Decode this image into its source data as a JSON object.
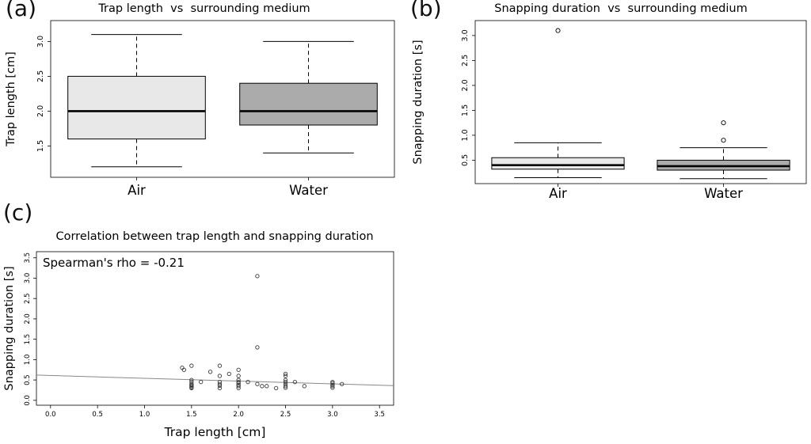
{
  "figure": {
    "panels": {
      "a": {
        "label": "(a)"
      },
      "b": {
        "label": "(b)"
      },
      "c": {
        "label": "(c)"
      }
    },
    "colors": {
      "air_box": "#e8e8e8",
      "water_box": "#ababab",
      "regression_line": "#888888"
    }
  },
  "chart_data": [
    {
      "panel": "a",
      "type": "boxplot",
      "title": "Trap length  vs  surrounding medium",
      "ylabel": "Trap length [cm]",
      "categories": [
        "Air",
        "Water"
      ],
      "ylim": [
        1.05,
        3.3
      ],
      "yticks": [
        1.5,
        2.0,
        2.5,
        3.0
      ],
      "grid": false,
      "boxes": [
        {
          "category": "Air",
          "whisker_low": 1.2,
          "q1": 1.6,
          "median": 2.0,
          "q3": 2.5,
          "whisker_high": 3.1,
          "outliers": [],
          "fill": "#e8e8e8"
        },
        {
          "category": "Water",
          "whisker_low": 1.4,
          "q1": 1.8,
          "median": 2.0,
          "q3": 2.4,
          "whisker_high": 3.0,
          "outliers": [],
          "fill": "#ababab"
        }
      ]
    },
    {
      "panel": "b",
      "type": "boxplot",
      "title": "Snapping duration  vs  surrounding medium",
      "ylabel": "Snapping duration [s]",
      "categories": [
        "Air",
        "Water"
      ],
      "ylim": [
        0.03,
        3.3
      ],
      "yticks": [
        0.5,
        1.0,
        1.5,
        2.0,
        2.5,
        3.0
      ],
      "grid": false,
      "boxes": [
        {
          "category": "Air",
          "whisker_low": 0.15,
          "q1": 0.32,
          "median": 0.4,
          "q3": 0.55,
          "whisker_high": 0.85,
          "outliers": [
            3.1
          ],
          "fill": "#e8e8e8"
        },
        {
          "category": "Water",
          "whisker_low": 0.13,
          "q1": 0.3,
          "median": 0.38,
          "q3": 0.5,
          "whisker_high": 0.75,
          "outliers": [
            1.25,
            0.9
          ],
          "fill": "#ababab"
        }
      ]
    },
    {
      "panel": "c",
      "type": "scatter",
      "title": "Correlation between trap length and snapping duration",
      "annotation": "Spearman's rho = -0.21",
      "spearman_rho": -0.21,
      "xlabel": "Trap length [cm]",
      "ylabel": "Snapping duration [s]",
      "xlim": [
        -0.15,
        3.65
      ],
      "ylim": [
        -0.12,
        3.65
      ],
      "xticks": [
        0.0,
        0.5,
        1.0,
        1.5,
        2.0,
        2.5,
        3.0,
        3.5
      ],
      "yticks": [
        0.0,
        0.5,
        1.0,
        1.5,
        2.0,
        2.5,
        3.0,
        3.5
      ],
      "regression_line": {
        "x1": -0.15,
        "y1": 0.62,
        "x2": 3.65,
        "y2": 0.36
      },
      "points": [
        [
          1.4,
          0.8
        ],
        [
          1.42,
          0.75
        ],
        [
          1.5,
          0.85
        ],
        [
          1.5,
          0.5
        ],
        [
          1.5,
          0.45
        ],
        [
          1.5,
          0.4
        ],
        [
          1.5,
          0.37
        ],
        [
          1.5,
          0.35
        ],
        [
          1.5,
          0.32
        ],
        [
          1.5,
          0.3
        ],
        [
          1.6,
          0.45
        ],
        [
          1.7,
          0.7
        ],
        [
          1.8,
          0.85
        ],
        [
          1.8,
          0.6
        ],
        [
          1.8,
          0.45
        ],
        [
          1.8,
          0.4
        ],
        [
          1.8,
          0.36
        ],
        [
          1.8,
          0.3
        ],
        [
          1.9,
          0.65
        ],
        [
          2.0,
          0.75
        ],
        [
          2.0,
          0.6
        ],
        [
          2.0,
          0.5
        ],
        [
          2.0,
          0.45
        ],
        [
          2.0,
          0.42
        ],
        [
          2.0,
          0.38
        ],
        [
          2.0,
          0.35
        ],
        [
          2.0,
          0.3
        ],
        [
          2.1,
          0.45
        ],
        [
          2.2,
          3.05
        ],
        [
          2.2,
          1.3
        ],
        [
          2.2,
          0.4
        ],
        [
          2.25,
          0.35
        ],
        [
          2.3,
          0.35
        ],
        [
          2.4,
          0.3
        ],
        [
          2.5,
          0.65
        ],
        [
          2.5,
          0.6
        ],
        [
          2.5,
          0.5
        ],
        [
          2.5,
          0.45
        ],
        [
          2.5,
          0.4
        ],
        [
          2.5,
          0.35
        ],
        [
          2.5,
          0.31
        ],
        [
          2.6,
          0.45
        ],
        [
          2.7,
          0.35
        ],
        [
          3.0,
          0.45
        ],
        [
          3.0,
          0.42
        ],
        [
          3.0,
          0.38
        ],
        [
          3.0,
          0.35
        ],
        [
          3.0,
          0.31
        ],
        [
          3.1,
          0.4
        ]
      ]
    }
  ]
}
